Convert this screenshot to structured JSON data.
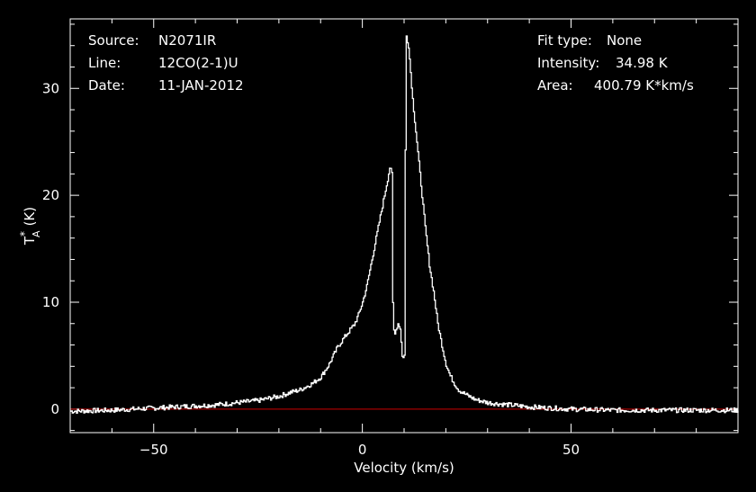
{
  "info_left": {
    "source_label": "Source:",
    "source_value": "N2071IR",
    "line_label": "Line:",
    "line_value": "12CO(2-1)U",
    "date_label": "Date:",
    "date_value": "11-JAN-2012"
  },
  "info_right": {
    "fit_label": "Fit type:",
    "fit_value": "None",
    "intensity_label": "Intensity:",
    "intensity_value": "34.98 K",
    "area_label": "Area:",
    "area_value": "400.79 K*km/s"
  },
  "chart_data": {
    "type": "line",
    "xlabel": "Velocity (km/s)",
    "ylabel_main": "T",
    "ylabel_sup": "*",
    "ylabel_sub": "A",
    "ylabel_unit": "(K)",
    "xlim": [
      -70,
      90
    ],
    "ylim": [
      -2.2,
      36.5
    ],
    "xticks": [
      -50,
      0,
      50
    ],
    "xtick_labels": [
      "−50",
      "0",
      "50"
    ],
    "yticks": [
      0,
      10,
      20,
      30
    ],
    "ytick_labels": [
      "0",
      "10",
      "20",
      "30"
    ],
    "grid": false,
    "colors": {
      "spectrum": "#ffffff",
      "baseline": "#cc0000",
      "axes": "#ffffff"
    },
    "baseline": 0,
    "series": [
      {
        "x": [
          -70,
          -60,
          -50,
          -45,
          -40,
          -35,
          -30,
          -25,
          -20,
          -17,
          -15,
          -12,
          -10,
          -8,
          -6,
          -4,
          -2,
          -1,
          0,
          1,
          2,
          3,
          4,
          5,
          6,
          6.5,
          7,
          7.3,
          7.8,
          8.5,
          9,
          9.5,
          10,
          10.3,
          10.5,
          11,
          11.5,
          12,
          13,
          14,
          15,
          16,
          17,
          18,
          19,
          20,
          21,
          22,
          23,
          25,
          27,
          30,
          35,
          40,
          45,
          50,
          60,
          70,
          80,
          90
        ],
        "y": [
          -0.2,
          -0.1,
          0.1,
          0.2,
          0.3,
          0.4,
          0.6,
          0.8,
          1.2,
          1.6,
          1.8,
          2.4,
          3.0,
          4.2,
          5.8,
          6.9,
          7.9,
          8.8,
          10.0,
          11.5,
          13.5,
          15.5,
          17.5,
          19.5,
          21.5,
          22.6,
          22.0,
          7.5,
          7.2,
          8.0,
          7.6,
          4.9,
          5.0,
          28.0,
          34.9,
          34.0,
          31.5,
          29.0,
          25.0,
          21.0,
          17.0,
          13.5,
          11.0,
          8.0,
          6.0,
          4.2,
          3.1,
          2.4,
          1.8,
          1.3,
          0.9,
          0.6,
          0.4,
          0.2,
          0.1,
          0.0,
          -0.1,
          -0.1,
          -0.1,
          -0.1
        ]
      }
    ]
  }
}
